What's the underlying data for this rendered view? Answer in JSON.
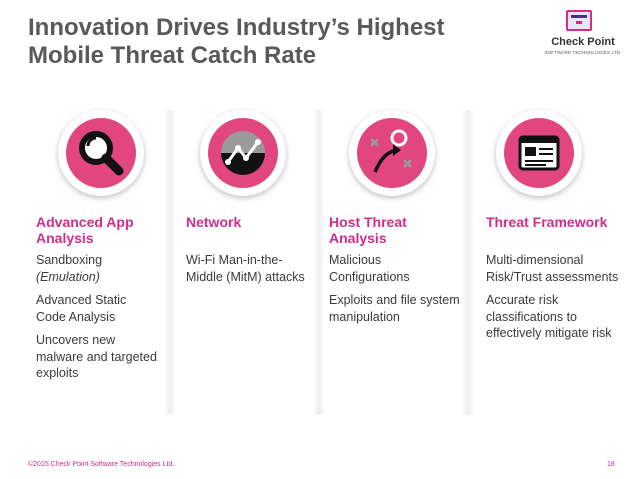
{
  "slide": {
    "title": "Innovation Drives Industry’s Highest Mobile Threat Catch Rate",
    "logo": {
      "name": "Check Point",
      "subtitle": "SOFTWARE TECHNOLOGIES LTD.",
      "colors": {
        "border": "#d12d8b",
        "accent": "#4b2e83"
      }
    },
    "footer": "©2015 Check Point Software Technologies Ltd.",
    "page_number": "18",
    "accent_color": "#d12d8b",
    "icon_color": "#e2467f"
  },
  "columns": [
    {
      "icon": "magnifier-icon",
      "heading": "Advanced App Analysis",
      "paragraphs": [
        {
          "line1": "Sandboxing",
          "line2": "(Emulation)"
        },
        {
          "text": "Advanced Static Code Analysis"
        },
        {
          "text": "Uncovers new malware and targeted exploits"
        }
      ]
    },
    {
      "icon": "network-globe-icon",
      "heading": "Network",
      "paragraphs": [
        {
          "text": "Wi-Fi Man-in-the-Middle (MitM) attacks"
        }
      ]
    },
    {
      "icon": "threat-path-icon",
      "heading": "Host Threat Analysis",
      "paragraphs": [
        {
          "text": "Malicious Configurations"
        },
        {
          "text": "Exploits and file system manipulation"
        }
      ]
    },
    {
      "icon": "framework-card-icon",
      "heading": "Threat Framework",
      "paragraphs": [
        {
          "text": "Multi-dimensional Risk/Trust assessments"
        },
        {
          "text": "Accurate risk classifications to effectively mitigate risk"
        }
      ]
    }
  ]
}
